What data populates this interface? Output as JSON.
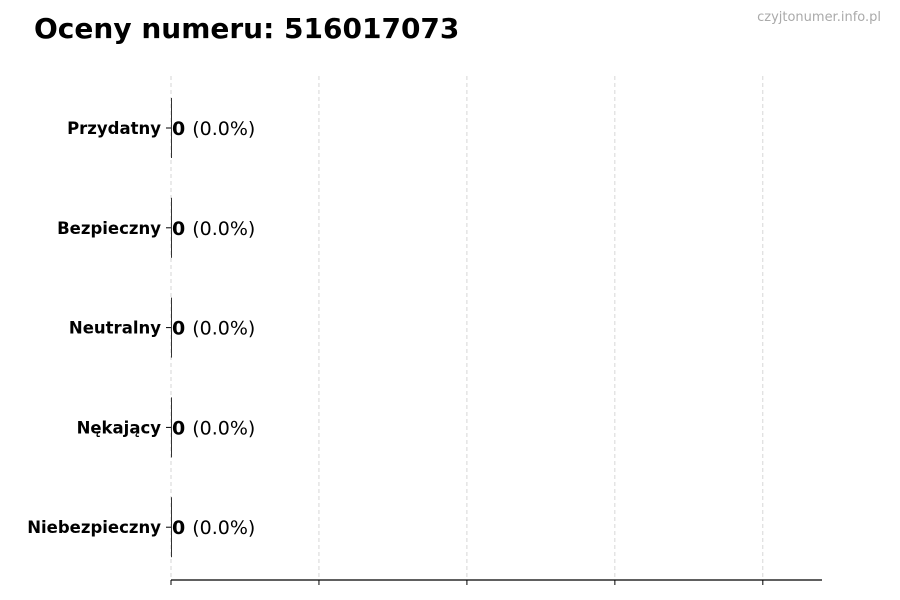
{
  "title": "Oceny numeru: 516017073",
  "watermark": "czyjtonumer.info.pl",
  "chart_data": {
    "type": "bar",
    "orientation": "horizontal",
    "title": "Oceny numeru: 516017073",
    "categories": [
      "Przydatny",
      "Bezpieczny",
      "Neutralny",
      "Nękający",
      "Niebezpieczny"
    ],
    "values": [
      0,
      0,
      0,
      0,
      0
    ],
    "percents": [
      "0.0%",
      "0.0%",
      "0.0%",
      "0.0%",
      "0.0%"
    ],
    "data_labels": [
      {
        "count": "0",
        "pct": "(0.0%)"
      },
      {
        "count": "0",
        "pct": "(0.0%)"
      },
      {
        "count": "0",
        "pct": "(0.0%)"
      },
      {
        "count": "0",
        "pct": "(0.0%)"
      },
      {
        "count": "0",
        "pct": "(0.0%)"
      }
    ],
    "xlim": [
      0,
      4.4
    ],
    "xticks": [
      0,
      1,
      2,
      3,
      4
    ],
    "xtick_labels_shown": false,
    "grid": "vertical dashed",
    "bar_color": "#333333",
    "xlabel": "",
    "ylabel": ""
  }
}
